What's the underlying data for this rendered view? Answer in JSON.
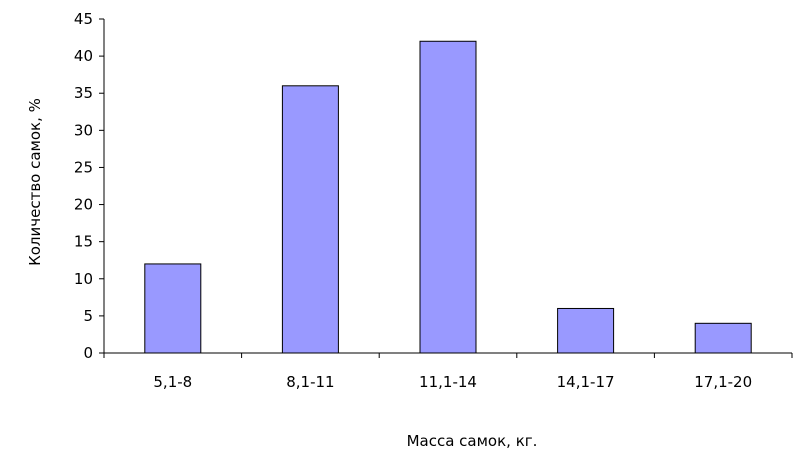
{
  "chart_data": {
    "type": "bar",
    "categories": [
      "5,1-8",
      "8,1-11",
      "11,1-14",
      "14,1-17",
      "17,1-20"
    ],
    "values": [
      12,
      36,
      42,
      6,
      4
    ],
    "yticks": [
      "0",
      "5",
      "10",
      "15",
      "20",
      "25",
      "30",
      "35",
      "40",
      "45"
    ],
    "xlabel": "Масса самок, кг.",
    "ylabel": "Количество самок, %",
    "ylim": [
      0,
      45
    ],
    "grid": false,
    "legend": "none",
    "colors": {
      "bar": "#9999ff",
      "axis": "#000000"
    }
  }
}
